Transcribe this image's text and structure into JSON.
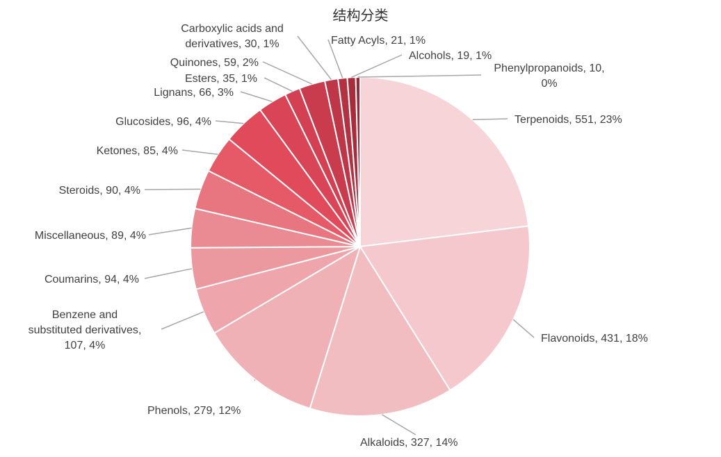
{
  "chart_data": {
    "type": "pie",
    "title": "结构分类",
    "slices": [
      {
        "name": "Terpenoids",
        "value": 551,
        "percent": "23%",
        "label": [
          "Terpenoids, 551, 23%"
        ],
        "color": "#f6d4d8"
      },
      {
        "name": "Flavonoids",
        "value": 431,
        "percent": "18%",
        "label": [
          "Flavonoids, 431, 18%"
        ],
        "color": "#f4c8cc"
      },
      {
        "name": "Alkaloids",
        "value": 327,
        "percent": "14%",
        "label": [
          "Alkaloids, 327, 14%"
        ],
        "color": "#f2bdc1"
      },
      {
        "name": "Phenols",
        "value": 279,
        "percent": "12%",
        "label": [
          "Phenols, 279, 12%"
        ],
        "color": "#f0b1b6"
      },
      {
        "name": "Benzene and substituted derivatives",
        "value": 107,
        "percent": "4%",
        "label": [
          "Benzene and",
          "substituted derivatives,",
          "107, 4%"
        ],
        "color": "#eea5ab"
      },
      {
        "name": "Coumarins",
        "value": 94,
        "percent": "4%",
        "label": [
          "Coumarins, 94, 4%"
        ],
        "color": "#ec989f"
      },
      {
        "name": "Miscellaneous",
        "value": 89,
        "percent": "4%",
        "label": [
          "Miscellaneous, 89, 4%"
        ],
        "color": "#ea8a92"
      },
      {
        "name": "Steroids",
        "value": 90,
        "percent": "4%",
        "label": [
          "Steroids, 90, 4%"
        ],
        "color": "#e87680"
      },
      {
        "name": "Ketones",
        "value": 85,
        "percent": "4%",
        "label": [
          "Ketones, 85, 4%"
        ],
        "color": "#e65a68"
      },
      {
        "name": "Glucosides",
        "value": 96,
        "percent": "4%",
        "label": [
          "Glucosides, 96, 4%"
        ],
        "color": "#e04a5b"
      },
      {
        "name": "Lignans",
        "value": 66,
        "percent": "3%",
        "label": [
          "Lignans, 66, 3%"
        ],
        "color": "#d94456"
      },
      {
        "name": "Esters",
        "value": 35,
        "percent": "1%",
        "label": [
          "Esters, 35, 1%"
        ],
        "color": "#d24052"
      },
      {
        "name": "Quinones",
        "value": 59,
        "percent": "2%",
        "label": [
          "Quinones, 59, 2%"
        ],
        "color": "#c83c4e"
      },
      {
        "name": "Carboxylic acids and derivatives",
        "value": 30,
        "percent": "1%",
        "label": [
          "Carboxylic acids and",
          "derivatives, 30, 1%"
        ],
        "color": "#be3748"
      },
      {
        "name": "Fatty Acyls",
        "value": 21,
        "percent": "1%",
        "label": [
          "Fatty Acyls, 21, 1%"
        ],
        "color": "#b33242"
      },
      {
        "name": "Alcohols",
        "value": 19,
        "percent": "1%",
        "label": [
          "Alcohols, 19, 1%"
        ],
        "color": "#a82c3b"
      },
      {
        "name": "Phenylpropanoids",
        "value": 10,
        "percent": "0%",
        "label": [
          "Phenylpropanoids, 10,",
          "0%"
        ],
        "color": "#9c2634"
      }
    ]
  }
}
